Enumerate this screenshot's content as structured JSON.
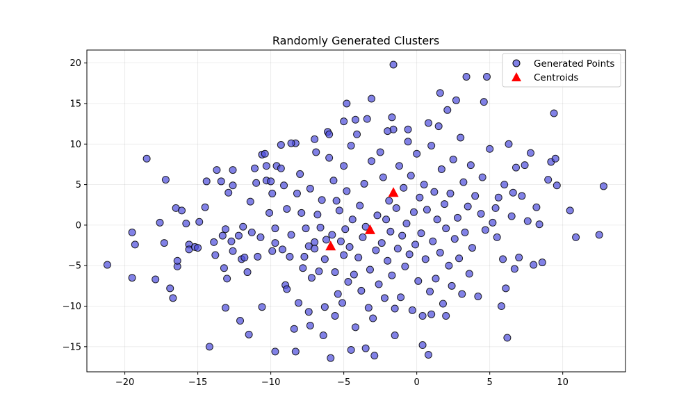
{
  "chart_data": {
    "type": "scatter",
    "title": "Randomly Generated Clusters",
    "xlabel": "",
    "ylabel": "",
    "xlim": [
      -22.6,
      14.3
    ],
    "ylim": [
      -18.1,
      21.6
    ],
    "xticks": [
      -20,
      -15,
      -10,
      -5,
      0,
      5,
      10
    ],
    "yticks": [
      -15,
      -10,
      -5,
      0,
      5,
      10,
      15,
      20
    ],
    "grid": true,
    "legend_position": "top-right",
    "colors": {
      "points_fill": "#4b4bdc",
      "points_edge": "#000000",
      "centroids": "#ff0000"
    },
    "series": [
      {
        "name": "Generated Points",
        "marker": "circle",
        "points": [
          [
            -21.2,
            -4.9
          ],
          [
            -19.5,
            -6.5
          ],
          [
            -19.5,
            -0.9
          ],
          [
            -19.3,
            -2.4
          ],
          [
            -18.5,
            8.2
          ],
          [
            -17.9,
            -6.7
          ],
          [
            -17.6,
            0.3
          ],
          [
            -17.2,
            5.6
          ],
          [
            -17.3,
            -2.2
          ],
          [
            -16.9,
            -7.8
          ],
          [
            -16.7,
            -9.0
          ],
          [
            -16.5,
            2.1
          ],
          [
            -16.4,
            -5.1
          ],
          [
            -16.4,
            -4.4
          ],
          [
            -16.1,
            1.8
          ],
          [
            -15.8,
            0.2
          ],
          [
            -15.6,
            -2.4
          ],
          [
            -15.6,
            -3.0
          ],
          [
            -15.2,
            -2.7
          ],
          [
            -15.0,
            -2.8
          ],
          [
            -14.9,
            0.4
          ],
          [
            -14.5,
            2.2
          ],
          [
            -14.4,
            5.4
          ],
          [
            -14.2,
            -15.0
          ],
          [
            -13.9,
            -2.1
          ],
          [
            -13.8,
            -3.7
          ],
          [
            -13.7,
            6.8
          ],
          [
            -13.4,
            5.4
          ],
          [
            -13.3,
            -1.3
          ],
          [
            -13.1,
            -10.2
          ],
          [
            -13.2,
            -5.3
          ],
          [
            -13.1,
            -0.5
          ],
          [
            -13.0,
            -6.6
          ],
          [
            -12.9,
            4.0
          ],
          [
            -12.7,
            -2.0
          ],
          [
            -12.6,
            4.9
          ],
          [
            -12.6,
            6.8
          ],
          [
            -12.6,
            -3.2
          ],
          [
            -12.2,
            -1.3
          ],
          [
            -12.1,
            -11.8
          ],
          [
            -12.0,
            -4.2
          ],
          [
            -11.9,
            -0.2
          ],
          [
            -11.8,
            -4.0
          ],
          [
            -11.6,
            -5.8
          ],
          [
            -11.5,
            -13.5
          ],
          [
            -11.4,
            2.9
          ],
          [
            -11.3,
            -0.9
          ],
          [
            -11.1,
            7.0
          ],
          [
            -11.0,
            5.2
          ],
          [
            -10.9,
            -3.9
          ],
          [
            -10.7,
            -1.5
          ],
          [
            -10.6,
            8.7
          ],
          [
            -10.6,
            -10.1
          ],
          [
            -10.4,
            8.8
          ],
          [
            -10.3,
            7.3
          ],
          [
            -10.3,
            5.5
          ],
          [
            -10.1,
            1.5
          ],
          [
            -10.0,
            5.4
          ],
          [
            -9.9,
            3.9
          ],
          [
            -9.9,
            -3.2
          ],
          [
            -9.7,
            -0.4
          ],
          [
            -9.7,
            -2.2
          ],
          [
            -9.6,
            7.3
          ],
          [
            -9.3,
            7.0
          ],
          [
            -9.2,
            -3.0
          ],
          [
            -9.1,
            4.9
          ],
          [
            -9.0,
            -7.4
          ],
          [
            -8.9,
            -7.9
          ],
          [
            -8.9,
            2.0
          ],
          [
            -8.7,
            -3.9
          ],
          [
            -8.6,
            -1.2
          ],
          [
            -8.4,
            -12.8
          ],
          [
            -8.3,
            -15.6
          ],
          [
            -8.3,
            10.1
          ],
          [
            -8.2,
            3.9
          ],
          [
            -8.1,
            -9.6
          ],
          [
            -8.0,
            6.3
          ],
          [
            -7.9,
            1.5
          ],
          [
            -7.8,
            -5.3
          ],
          [
            -7.7,
            -3.9
          ],
          [
            -7.6,
            -0.4
          ],
          [
            -7.4,
            -10.7
          ],
          [
            -7.4,
            -2.6
          ],
          [
            -7.3,
            4.5
          ],
          [
            -7.2,
            -6.5
          ],
          [
            -7.0,
            -2.1
          ],
          [
            -7.0,
            -2.9
          ],
          [
            -6.9,
            9.0
          ],
          [
            -6.8,
            1.3
          ],
          [
            -6.7,
            -5.7
          ],
          [
            -6.6,
            -0.3
          ],
          [
            -6.5,
            3.1
          ],
          [
            -6.4,
            -13.6
          ],
          [
            -6.3,
            -4.2
          ],
          [
            -6.2,
            -1.8
          ],
          [
            -6.1,
            11.5
          ],
          [
            -6.0,
            8.3
          ],
          [
            -5.9,
            -16.4
          ],
          [
            -5.8,
            -1.2
          ],
          [
            -5.7,
            5.5
          ],
          [
            -5.6,
            -5.8
          ],
          [
            -5.5,
            3.0
          ],
          [
            -5.4,
            -8.5
          ],
          [
            -5.3,
            1.8
          ],
          [
            -5.2,
            -2.0
          ],
          [
            -5.1,
            -9.6
          ],
          [
            -5.0,
            7.3
          ],
          [
            -5.0,
            -3.7
          ],
          [
            -4.9,
            -0.5
          ],
          [
            -4.8,
            4.2
          ],
          [
            -4.7,
            -7.0
          ],
          [
            -4.6,
            -2.7
          ],
          [
            -4.5,
            9.8
          ],
          [
            -4.4,
            0.7
          ],
          [
            -4.3,
            -6.1
          ],
          [
            -4.2,
            -12.6
          ],
          [
            -4.1,
            11.2
          ],
          [
            -4.0,
            -4.0
          ],
          [
            -3.9,
            2.4
          ],
          [
            -3.8,
            -8.1
          ],
          [
            -3.7,
            -1.5
          ],
          [
            -3.6,
            5.1
          ],
          [
            -3.5,
            -0.2
          ],
          [
            -3.4,
            13.1
          ],
          [
            -3.3,
            -10.2
          ],
          [
            -3.2,
            -5.5
          ],
          [
            -3.1,
            7.9
          ],
          [
            -3.0,
            -11.5
          ],
          [
            -2.9,
            -16.1
          ],
          [
            -2.8,
            -3.1
          ],
          [
            -2.7,
            1.2
          ],
          [
            -2.6,
            -7.3
          ],
          [
            -2.5,
            9.0
          ],
          [
            -2.4,
            -2.2
          ],
          [
            -2.3,
            5.9
          ],
          [
            -2.2,
            -9.0
          ],
          [
            -2.1,
            0.7
          ],
          [
            -2.0,
            -4.4
          ],
          [
            -1.9,
            3.0
          ],
          [
            -1.8,
            -0.8
          ],
          [
            -1.7,
            -6.2
          ],
          [
            -1.6,
            11.8
          ],
          [
            -1.5,
            -13.6
          ],
          [
            -1.4,
            2.1
          ],
          [
            -1.3,
            -2.9
          ],
          [
            -1.2,
            7.3
          ],
          [
            -1.1,
            -8.9
          ],
          [
            -1.0,
            -1.3
          ],
          [
            -0.9,
            4.6
          ],
          [
            -0.8,
            -5.1
          ],
          [
            -0.7,
            0.2
          ],
          [
            -0.6,
            10.3
          ],
          [
            -0.5,
            -3.6
          ],
          [
            -0.4,
            6.1
          ],
          [
            -0.3,
            -10.5
          ],
          [
            -0.2,
            1.6
          ],
          [
            -0.1,
            -2.4
          ],
          [
            0.0,
            8.8
          ],
          [
            0.1,
            -6.9
          ],
          [
            0.2,
            3.4
          ],
          [
            0.3,
            -1.0
          ],
          [
            0.4,
            -14.8
          ],
          [
            0.5,
            5.0
          ],
          [
            0.6,
            -4.2
          ],
          [
            0.7,
            1.9
          ],
          [
            0.8,
            -16.0
          ],
          [
            0.9,
            -8.2
          ],
          [
            1.0,
            9.8
          ],
          [
            1.1,
            -2.0
          ],
          [
            1.2,
            4.1
          ],
          [
            1.3,
            -6.6
          ],
          [
            1.4,
            0.7
          ],
          [
            1.5,
            12.2
          ],
          [
            1.6,
            -3.4
          ],
          [
            1.7,
            6.9
          ],
          [
            1.8,
            -9.7
          ],
          [
            1.9,
            2.6
          ],
          [
            2.0,
            -0.4
          ],
          [
            2.1,
            14.2
          ],
          [
            2.2,
            -5.0
          ],
          [
            2.3,
            3.9
          ],
          [
            2.4,
            -7.5
          ],
          [
            2.5,
            8.1
          ],
          [
            2.6,
            -1.7
          ],
          [
            2.7,
            15.4
          ],
          [
            2.8,
            0.9
          ],
          [
            2.9,
            -4.1
          ],
          [
            3.0,
            10.8
          ],
          [
            3.1,
            -8.5
          ],
          [
            3.2,
            5.3
          ],
          [
            3.3,
            -0.9
          ],
          [
            3.4,
            18.3
          ],
          [
            3.5,
            2.3
          ],
          [
            3.6,
            -6.0
          ],
          [
            3.7,
            7.4
          ],
          [
            3.8,
            -2.8
          ],
          [
            4.0,
            3.6
          ],
          [
            4.2,
            -8.8
          ],
          [
            4.4,
            1.4
          ],
          [
            4.5,
            5.9
          ],
          [
            4.6,
            15.2
          ],
          [
            4.7,
            -0.6
          ],
          [
            4.8,
            18.3
          ],
          [
            5.0,
            9.4
          ],
          [
            5.2,
            0.3
          ],
          [
            5.4,
            2.1
          ],
          [
            5.5,
            -1.5
          ],
          [
            5.6,
            3.4
          ],
          [
            5.8,
            -10.0
          ],
          [
            5.9,
            -4.2
          ],
          [
            6.0,
            5.0
          ],
          [
            6.1,
            -7.8
          ],
          [
            6.2,
            -13.9
          ],
          [
            6.3,
            10.0
          ],
          [
            6.5,
            1.1
          ],
          [
            6.6,
            4.0
          ],
          [
            6.7,
            -5.4
          ],
          [
            6.8,
            7.1
          ],
          [
            7.0,
            -4.0
          ],
          [
            7.2,
            3.6
          ],
          [
            7.4,
            7.4
          ],
          [
            7.6,
            0.5
          ],
          [
            7.8,
            8.9
          ],
          [
            8.0,
            -4.9
          ],
          [
            8.2,
            2.2
          ],
          [
            8.4,
            0.1
          ],
          [
            8.6,
            -4.6
          ],
          [
            9.0,
            5.6
          ],
          [
            9.2,
            7.8
          ],
          [
            9.4,
            13.8
          ],
          [
            9.5,
            8.2
          ],
          [
            9.6,
            4.9
          ],
          [
            10.5,
            1.8
          ],
          [
            10.9,
            -1.5
          ],
          [
            12.5,
            -1.2
          ],
          [
            12.8,
            4.8
          ],
          [
            -1.6,
            19.8
          ],
          [
            -4.8,
            15.0
          ],
          [
            -3.1,
            15.6
          ],
          [
            1.6,
            16.3
          ],
          [
            -5.6,
            -11.2
          ],
          [
            -6.3,
            -10.1
          ],
          [
            -7.3,
            -12.4
          ],
          [
            -9.7,
            -15.6
          ],
          [
            -4.5,
            -15.4
          ],
          [
            -3.5,
            -15.2
          ],
          [
            0.4,
            -11.2
          ],
          [
            -1.5,
            -10.3
          ],
          [
            2.0,
            -11.2
          ],
          [
            1.0,
            -11.0
          ],
          [
            -9.3,
            9.9
          ],
          [
            -8.6,
            10.1
          ],
          [
            -7.0,
            10.6
          ],
          [
            -6.0,
            11.2
          ],
          [
            -5.0,
            12.8
          ],
          [
            -4.2,
            13.0
          ],
          [
            -2.0,
            11.6
          ],
          [
            -0.6,
            11.8
          ],
          [
            0.8,
            12.6
          ],
          [
            -1.7,
            13.3
          ]
        ]
      }
    ],
    "centroids": {
      "name": "Centroids",
      "marker": "triangle",
      "points": [
        [
          -1.6,
          4.0
        ],
        [
          -3.2,
          -0.6
        ],
        [
          -5.9,
          -2.6
        ]
      ]
    },
    "legend": [
      {
        "label": "Generated Points",
        "marker": "circle",
        "color": "#4b4bdc"
      },
      {
        "label": "Centroids",
        "marker": "triangle",
        "color": "#ff0000"
      }
    ]
  }
}
